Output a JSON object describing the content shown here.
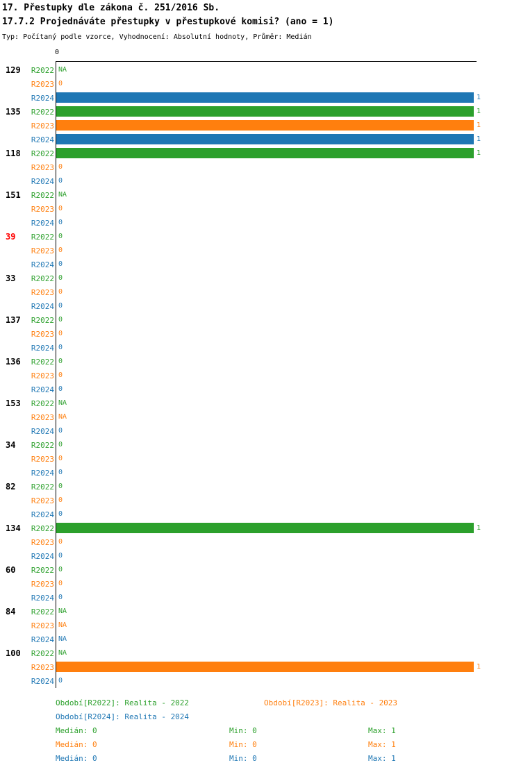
{
  "header": {
    "title": "17. Přestupky dle zákona č. 251/2016 Sb.",
    "subtitle": "17.7.2 Projednáváte přestupky v přestupkové komisi? (ano = 1)",
    "meta": "Typ: Počítaný podle vzorce, Vyhodnocení: Absolutní hodnoty, Průměr: Medián"
  },
  "axis": {
    "zero_label": "0"
  },
  "colors": {
    "r2022": "#2ca02c",
    "r2023": "#ff7f0e",
    "r2024": "#1f77b4",
    "highlight": "#ff0000",
    "axis": "#000000"
  },
  "chart_data": {
    "type": "bar",
    "orientation": "horizontal",
    "title": "17.7.2 Projednáváte přestupky v přestupkové komisi? (ano = 1)",
    "xlim": [
      0,
      1
    ],
    "grid": false,
    "categories": [
      "129",
      "135",
      "118",
      "151",
      "39",
      "33",
      "137",
      "136",
      "153",
      "34",
      "82",
      "134",
      "60",
      "84",
      "100"
    ],
    "highlighted_categories": [
      "39"
    ],
    "series": [
      {
        "name": "R2022",
        "color_key": "r2022",
        "values": [
          "NA",
          1,
          1,
          "NA",
          0,
          0,
          0,
          0,
          "NA",
          0,
          0,
          1,
          0,
          "NA",
          "NA"
        ]
      },
      {
        "name": "R2023",
        "color_key": "r2023",
        "values": [
          0,
          1,
          0,
          0,
          0,
          0,
          0,
          0,
          "NA",
          0,
          0,
          0,
          0,
          "NA",
          1
        ]
      },
      {
        "name": "R2024",
        "color_key": "r2024",
        "values": [
          1,
          1,
          0,
          0,
          0,
          0,
          0,
          0,
          0,
          0,
          0,
          0,
          0,
          "NA",
          0
        ]
      }
    ]
  },
  "legend": {
    "periods": [
      {
        "color_key": "r2022",
        "label": "Období[R2022]: Realita - 2022"
      },
      {
        "color_key": "r2023",
        "label": "Období[R2023]: Realita - 2023"
      },
      {
        "color_key": "r2024",
        "label": "Období[R2024]: Realita - 2024"
      }
    ],
    "stats": [
      {
        "color_key": "r2022",
        "median": "Medián: 0",
        "min": "Min: 0",
        "max": "Max: 1"
      },
      {
        "color_key": "r2023",
        "median": "Medián: 0",
        "min": "Min: 0",
        "max": "Max: 1"
      },
      {
        "color_key": "r2024",
        "median": "Medián: 0",
        "min": "Min: 0",
        "max": "Max: 1"
      }
    ]
  }
}
